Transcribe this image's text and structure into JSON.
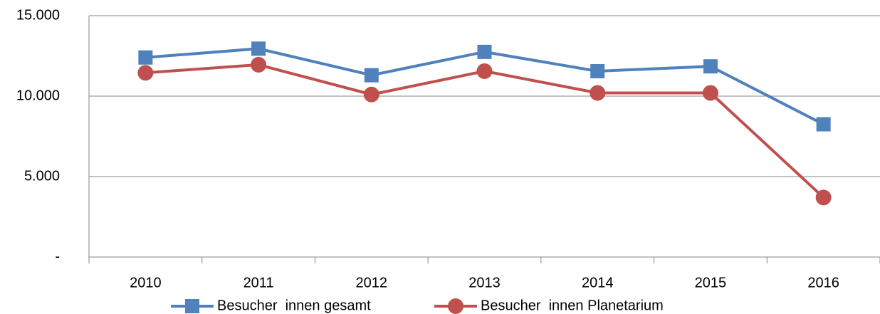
{
  "chart_data": {
    "type": "line",
    "categories": [
      "2010",
      "2011",
      "2012",
      "2013",
      "2014",
      "2015",
      "2016"
    ],
    "series": [
      {
        "name": "Besucher  innen gesamt",
        "color": "#4f81bd",
        "marker": "square",
        "values": [
          12400,
          12950,
          11300,
          12750,
          11550,
          11850,
          8250
        ]
      },
      {
        "name": "Besucher  innen Planetarium",
        "color": "#c0504d",
        "marker": "circle",
        "values": [
          11450,
          11950,
          10100,
          11550,
          10200,
          10200,
          3700
        ]
      }
    ],
    "ylim": [
      0,
      15000
    ],
    "yticks": [
      {
        "value": 0,
        "label": "-"
      },
      {
        "value": 5000,
        "label": "5.000"
      },
      {
        "value": 10000,
        "label": "10.000"
      },
      {
        "value": 15000,
        "label": "15.000"
      }
    ],
    "grid": true,
    "legend": "bottom"
  }
}
